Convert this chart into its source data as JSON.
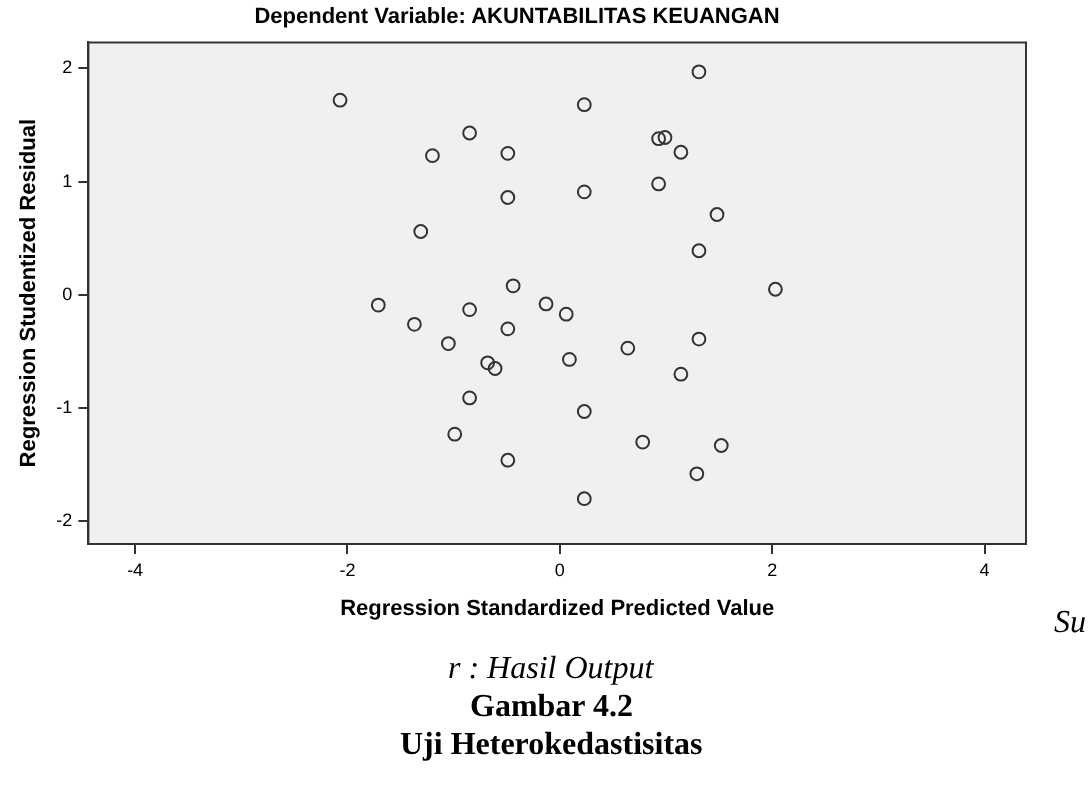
{
  "chart_data": {
    "type": "scatter",
    "title": "Dependent Variable: AKUNTABILITAS KEUANGAN",
    "xlabel": "Regression Standardized Predicted Value",
    "ylabel": "Regression Studentized Residual",
    "x": [
      -2.07,
      -0.85,
      -1.2,
      -0.49,
      -0.49,
      -1.31,
      -1.71,
      -0.44,
      -0.85,
      -1.37,
      -0.49,
      -1.05,
      -0.68,
      -0.61,
      -0.85,
      -0.99,
      -0.49,
      -0.13,
      1.31,
      0.23,
      0.93,
      0.99,
      1.14,
      0.23,
      0.93,
      1.48,
      1.31,
      2.03,
      0.06,
      0.09,
      0.64,
      1.31,
      1.14,
      0.23,
      0.78,
      1.52,
      1.29,
      0.23
    ],
    "values": [
      1.72,
      1.43,
      1.23,
      1.25,
      0.86,
      0.56,
      -0.09,
      0.08,
      -0.13,
      -0.26,
      -0.3,
      -0.43,
      -0.6,
      -0.65,
      -0.91,
      -1.23,
      -1.46,
      -0.08,
      1.97,
      1.68,
      1.38,
      1.39,
      1.26,
      0.91,
      0.98,
      0.71,
      0.39,
      0.05,
      -0.17,
      -0.57,
      -0.47,
      -0.39,
      -0.7,
      -1.03,
      -1.3,
      -1.33,
      -1.58,
      -1.8
    ],
    "color": "#333333",
    "marker": "circle",
    "grid": false,
    "legend": false,
    "xlim": [
      -4.44,
      4.39
    ],
    "ylim": [
      -2.2,
      2.23
    ],
    "xticks": [
      -4,
      -2,
      0,
      2,
      4
    ],
    "yticks": [
      -2,
      -1,
      0,
      1,
      2
    ],
    "annotations": [
      "Su",
      "r : Hasil Output",
      "Gambar 4.2",
      "Uji Heterokedastisitas"
    ]
  }
}
